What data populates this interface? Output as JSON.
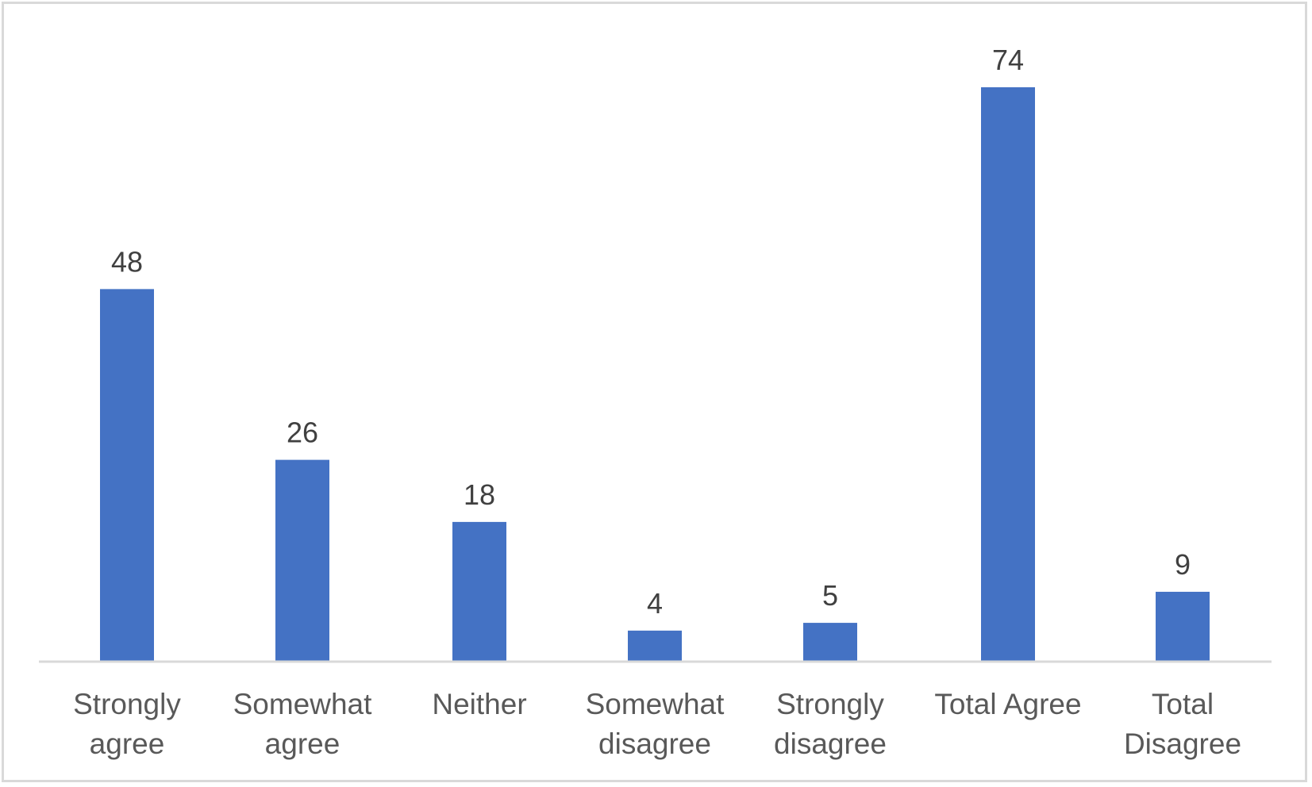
{
  "chart_data": {
    "type": "bar",
    "title": "",
    "xlabel": "",
    "ylabel": "",
    "categories": [
      [
        "Strongly",
        "agree"
      ],
      [
        "Somewhat",
        "agree"
      ],
      [
        "Neither"
      ],
      [
        "Somewhat",
        "disagree"
      ],
      [
        "Strongly",
        "disagree"
      ],
      [
        "Total Agree"
      ],
      [
        "Total",
        "Disagree"
      ]
    ],
    "values": [
      48,
      26,
      18,
      4,
      5,
      74,
      9
    ],
    "value_labels": [
      "48",
      "26",
      "18",
      "4",
      "5",
      "74",
      "9"
    ],
    "ylim": [
      0,
      74
    ],
    "grid": false,
    "legend": "none",
    "bar_color": "#4472C4",
    "axis_color": "#D9D9D9",
    "label_color": "#595959",
    "value_label_color": "#404040"
  }
}
